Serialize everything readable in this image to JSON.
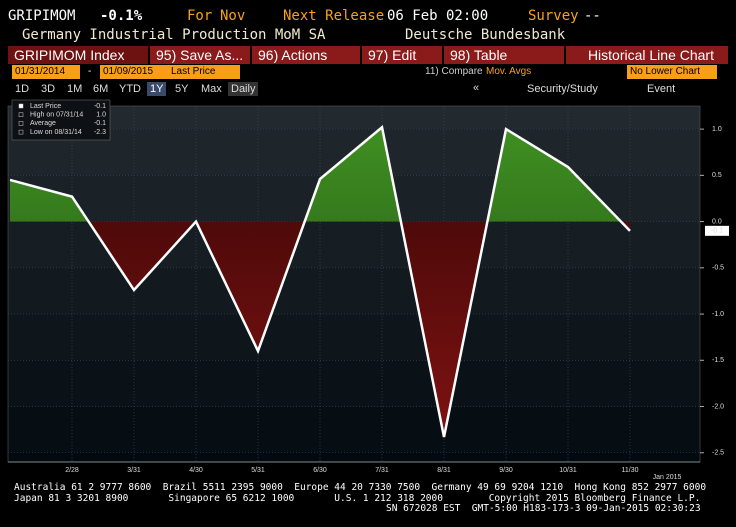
{
  "header": {
    "ticker": "GRIPIMOM",
    "change": "-0.1%",
    "period_label": "For",
    "period": "Nov",
    "release_label": "Next Release",
    "release": "06 Feb 02:00",
    "survey_label": "Survey",
    "survey": "--",
    "description": "Germany Industrial Production MoM SA",
    "source": "Deutsche Bundesbank"
  },
  "toolbar": {
    "security": "GRIPIMOM Index",
    "buttons": [
      "95) Save As...",
      "96) Actions",
      "97) Edit",
      "98) Table"
    ],
    "view": "Historical Line Chart"
  },
  "range": {
    "start": "01/31/2014",
    "separator": "-",
    "end": "01/09/2015",
    "field": "Last Price",
    "compare": "11) Compare",
    "compare_option": "Mov. Avgs",
    "lower": "No Lower Chart"
  },
  "periods": {
    "options": [
      "1D",
      "3D",
      "1M",
      "6M",
      "YTD",
      "1Y",
      "5Y",
      "Max"
    ],
    "selected": "1Y",
    "frequency": "Daily",
    "collapse": "«",
    "study": "Security/Study",
    "event": "Event"
  },
  "chart_data": {
    "type": "line",
    "fill": true,
    "line_color": "#ffffff",
    "above_color": "#3f8f22",
    "below_color": "#7e1212",
    "categories": [
      null,
      "2/28",
      "3/31",
      "4/30",
      "5/31",
      "6/30",
      "7/31",
      "8/31",
      "9/30",
      "10/31",
      "11/30"
    ],
    "values": [
      0.45,
      0.27,
      -0.74,
      0.0,
      -1.4,
      0.46,
      1.02,
      -2.33,
      1.0,
      0.59,
      -0.1
    ],
    "axis_note": "Jan 2015",
    "last_label": "-0.1",
    "ylim": [
      -2.6,
      1.25
    ],
    "yticks": [
      {
        "value": 1,
        "label": "1.0"
      },
      {
        "value": 0.5,
        "label": "0.5"
      },
      {
        "value": 0,
        "label": "0.0"
      },
      {
        "value": -0.5,
        "label": "-0.5"
      },
      {
        "value": -1,
        "label": "-1.0"
      },
      {
        "value": -1.5,
        "label": "-1.5"
      },
      {
        "value": -2,
        "label": "-2.0"
      },
      {
        "value": -2.5,
        "label": "-2.5"
      }
    ],
    "grid": true,
    "legend": [
      {
        "label": "Last Price",
        "value": "-0.1"
      },
      {
        "label": "High on 07/31/14",
        "value": "1.0"
      },
      {
        "label": "Average",
        "value": "-0.1"
      },
      {
        "label": "Low on 08/31/14",
        "value": "-2.3"
      }
    ]
  },
  "footer": [
    "Australia 61 2 9777 8600  Brazil 5511 2395 9000  Europe 44 20 7330 7500  Germany 49 69 9204 1210  Hong Kong 852 2977 6000",
    "Japan 81 3 3201 8900       Singapore 65 6212 1000       U.S. 1 212 318 2000        Copyright 2015 Bloomberg Finance L.P.",
    "SN 672028 EST  GMT-5:00 H183-173-3 09-Jan-2015 02:30:23"
  ]
}
